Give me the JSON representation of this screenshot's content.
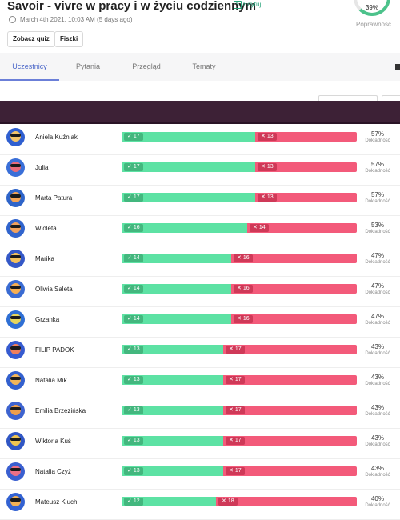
{
  "header": {
    "title": "Savoir - vivre w pracy i w życiu codziennym",
    "edit_label": "Edytuj",
    "date": "March 4th 2021, 10:03 AM (5 days ago)",
    "buttons": [
      "Zobacz quiz",
      "Fiszki"
    ],
    "accuracy_value": "39%",
    "accuracy_label": "Poprawność",
    "accuracy_fraction": 0.39
  },
  "tabs": [
    {
      "label": "Uczestnicy",
      "active": true
    },
    {
      "label": "Pytania",
      "active": false
    },
    {
      "label": "Przegląd",
      "active": false
    },
    {
      "label": "Tematy",
      "active": false
    }
  ],
  "banner_color": "#3d2136",
  "colors": {
    "correct": "#5de2a4",
    "incorrect": "#f35a7a",
    "accent": "#4a66c8"
  },
  "accuracy_word": "Dokładność",
  "participants": [
    {
      "name": "Aniela Kuźniak",
      "correct": 17,
      "incorrect": 13,
      "accuracy": "57%"
    },
    {
      "name": "Julia",
      "correct": 17,
      "incorrect": 13,
      "accuracy": "57%"
    },
    {
      "name": "Marta Patura",
      "correct": 17,
      "incorrect": 13,
      "accuracy": "57%"
    },
    {
      "name": "Wioleta",
      "correct": 16,
      "incorrect": 14,
      "accuracy": "53%"
    },
    {
      "name": "Marika",
      "correct": 14,
      "incorrect": 16,
      "accuracy": "47%"
    },
    {
      "name": "Oliwia Saleta",
      "correct": 14,
      "incorrect": 16,
      "accuracy": "47%"
    },
    {
      "name": "Grzanka",
      "correct": 14,
      "incorrect": 16,
      "accuracy": "47%"
    },
    {
      "name": "FILIP PADOK",
      "correct": 13,
      "incorrect": 17,
      "accuracy": "43%"
    },
    {
      "name": "Natalia Mik",
      "correct": 13,
      "incorrect": 17,
      "accuracy": "43%"
    },
    {
      "name": "Emilia Brzezińska",
      "correct": 13,
      "incorrect": 17,
      "accuracy": "43%"
    },
    {
      "name": "Wiktoria Kuś",
      "correct": 13,
      "incorrect": 17,
      "accuracy": "43%"
    },
    {
      "name": "Natalia Czyż",
      "correct": 13,
      "incorrect": 17,
      "accuracy": "43%"
    },
    {
      "name": "Mateusz Kluch",
      "correct": 12,
      "incorrect": 18,
      "accuracy": "40%"
    }
  ]
}
